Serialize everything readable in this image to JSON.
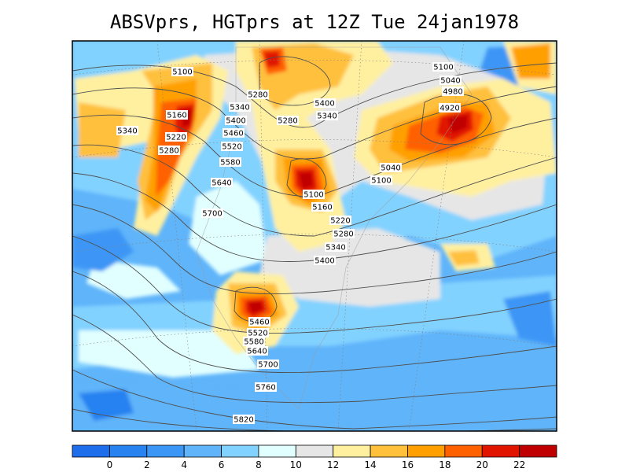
{
  "title": "ABSVprs, HGTprs at 12Z Tue 24jan1978",
  "colors": {
    "c_lt0": "#1e6eeb",
    "c_0_2": "#2882f0",
    "c_2_4": "#3c96f5",
    "c_4_6": "#5fb4fa",
    "c_6_8": "#82d2ff",
    "c_8_10": "#e1ffff",
    "c_10_12": "#e6e6e6",
    "c_12_14": "#fff0a0",
    "c_14_16": "#ffc03c",
    "c_16_18": "#ffa000",
    "c_18_20": "#ff6000",
    "c_20_22": "#e11400",
    "c_gt22": "#c00000",
    "contour": "#505050",
    "land": "#d8d8d8"
  },
  "colorbar": {
    "ticks": [
      "0",
      "2",
      "4",
      "6",
      "8",
      "10",
      "12",
      "14",
      "16",
      "18",
      "20",
      "22"
    ]
  },
  "contour_labels": [
    "5100",
    "5160",
    "5220",
    "5280",
    "5340",
    "5280",
    "5340",
    "5400",
    "5460",
    "5520",
    "5580",
    "5640",
    "5700",
    "5280",
    "5400",
    "5340",
    "5100",
    "5160",
    "5220",
    "5280",
    "5340",
    "5400",
    "5100",
    "5040",
    "4980",
    "4920",
    "5040",
    "5100",
    "5460",
    "5520",
    "5580",
    "5640",
    "5700",
    "5760",
    "5820"
  ]
}
